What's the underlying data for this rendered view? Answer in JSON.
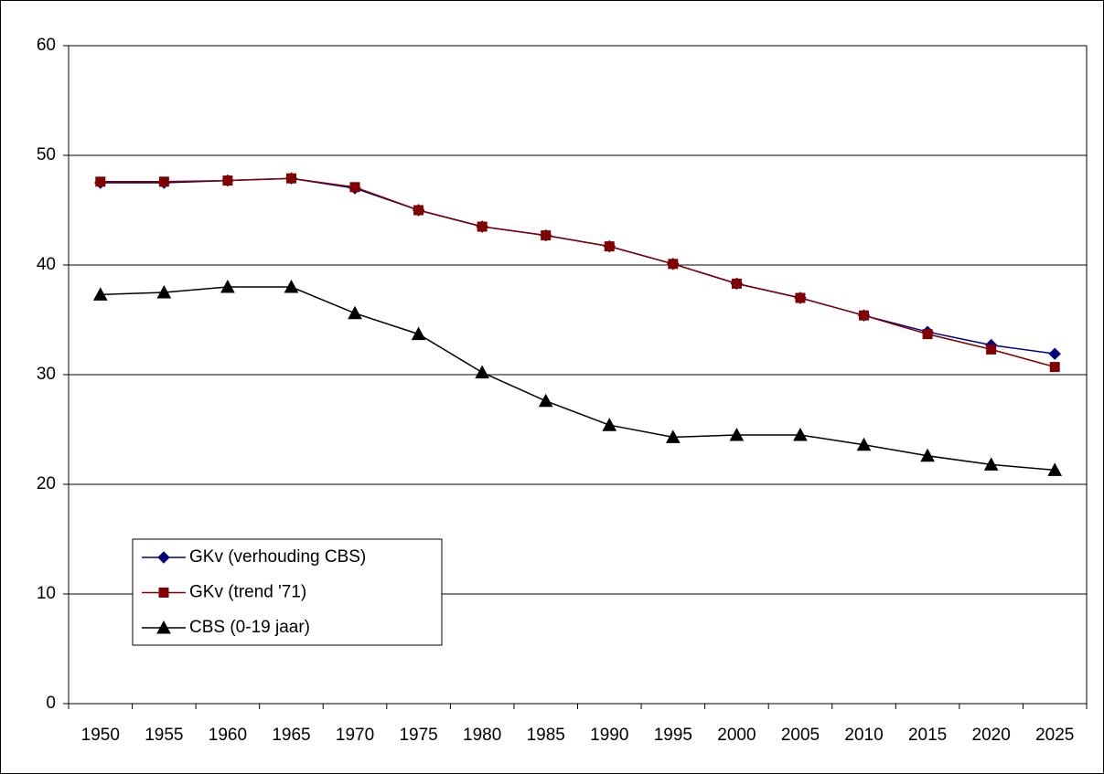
{
  "chart_data": {
    "type": "line",
    "categories": [
      "1950",
      "1955",
      "1960",
      "1965",
      "1970",
      "1975",
      "1980",
      "1985",
      "1990",
      "1995",
      "2000",
      "2005",
      "2010",
      "2015",
      "2020",
      "2025"
    ],
    "series": [
      {
        "name": "GKv (verhouding CBS)",
        "color": "#000080",
        "marker": "diamond",
        "values": [
          47.5,
          47.5,
          47.7,
          47.9,
          47.0,
          45.0,
          43.5,
          42.7,
          41.7,
          40.1,
          38.3,
          37.0,
          35.4,
          33.9,
          32.7,
          31.9
        ]
      },
      {
        "name": "GKv (trend '71)",
        "color": "#800000",
        "marker": "square",
        "values": [
          47.6,
          47.6,
          47.7,
          47.9,
          47.1,
          45.0,
          43.5,
          42.7,
          41.7,
          40.1,
          38.3,
          37.0,
          35.4,
          33.7,
          32.3,
          30.7
        ]
      },
      {
        "name": "CBS (0-19 jaar)",
        "color": "#000000",
        "marker": "triangle",
        "values": [
          37.3,
          37.5,
          38.0,
          38.0,
          35.6,
          33.7,
          30.2,
          27.6,
          25.4,
          24.3,
          24.5,
          24.5,
          23.6,
          22.6,
          21.8,
          21.3
        ]
      }
    ],
    "ylim": [
      0,
      60
    ],
    "yticks": [
      0,
      10,
      20,
      30,
      40,
      50,
      60
    ],
    "grid": true,
    "legend": "lower-left"
  }
}
